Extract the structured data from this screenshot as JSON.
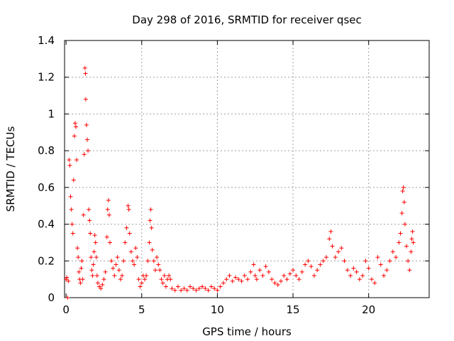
{
  "chart_data": {
    "type": "scatter",
    "title": "Day 298 of 2016, SRMTID for receiver qsec",
    "xlabel": "GPS time / hours",
    "ylabel": "SRMTID / TECUs",
    "xlim": [
      -0.1,
      24
    ],
    "ylim": [
      0,
      1.4
    ],
    "xticks": [
      0,
      5,
      10,
      15,
      20
    ],
    "xtick_labels": [
      "0",
      "5",
      "10",
      "15",
      "20"
    ],
    "yticks": [
      0,
      0.2,
      0.4,
      0.6,
      0.8,
      1.0,
      1.2,
      1.4
    ],
    "ytick_labels": [
      "0",
      "0.2",
      "0.4",
      "0.6",
      "0.8",
      "1",
      "1.2",
      "1.4"
    ],
    "grid": true,
    "marker": "plus",
    "marker_color": "#ff0000",
    "series": [
      {
        "name": "SRMTID",
        "points": [
          [
            0.0,
            0.1
          ],
          [
            0.05,
            0.11
          ],
          [
            0.1,
            0.0
          ],
          [
            0.15,
            0.09
          ],
          [
            0.2,
            0.75
          ],
          [
            0.25,
            0.72
          ],
          [
            0.3,
            0.55
          ],
          [
            0.35,
            0.48
          ],
          [
            0.4,
            0.4
          ],
          [
            0.45,
            0.35
          ],
          [
            0.5,
            0.64
          ],
          [
            0.55,
            0.88
          ],
          [
            0.6,
            0.95
          ],
          [
            0.65,
            0.93
          ],
          [
            0.7,
            0.75
          ],
          [
            0.75,
            0.27
          ],
          [
            0.8,
            0.22
          ],
          [
            0.85,
            0.14
          ],
          [
            0.9,
            0.1
          ],
          [
            0.95,
            0.08
          ],
          [
            1.0,
            0.16
          ],
          [
            1.05,
            0.2
          ],
          [
            1.1,
            0.1
          ],
          [
            1.15,
            0.45
          ],
          [
            1.2,
            0.78
          ],
          [
            1.25,
            1.25
          ],
          [
            1.28,
            1.22
          ],
          [
            1.3,
            1.08
          ],
          [
            1.35,
            0.94
          ],
          [
            1.4,
            0.86
          ],
          [
            1.45,
            0.8
          ],
          [
            1.5,
            0.48
          ],
          [
            1.55,
            0.42
          ],
          [
            1.6,
            0.35
          ],
          [
            1.65,
            0.22
          ],
          [
            1.7,
            0.15
          ],
          [
            1.75,
            0.12
          ],
          [
            1.8,
            0.18
          ],
          [
            1.85,
            0.25
          ],
          [
            1.9,
            0.34
          ],
          [
            1.95,
            0.3
          ],
          [
            2.0,
            0.22
          ],
          [
            2.05,
            0.12
          ],
          [
            2.1,
            0.08
          ],
          [
            2.2,
            0.06
          ],
          [
            2.3,
            0.05
          ],
          [
            2.4,
            0.07
          ],
          [
            2.5,
            0.1
          ],
          [
            2.6,
            0.14
          ],
          [
            2.7,
            0.33
          ],
          [
            2.75,
            0.48
          ],
          [
            2.8,
            0.53
          ],
          [
            2.85,
            0.45
          ],
          [
            2.9,
            0.3
          ],
          [
            3.0,
            0.2
          ],
          [
            3.1,
            0.16
          ],
          [
            3.2,
            0.12
          ],
          [
            3.3,
            0.18
          ],
          [
            3.4,
            0.22
          ],
          [
            3.5,
            0.15
          ],
          [
            3.6,
            0.1
          ],
          [
            3.7,
            0.12
          ],
          [
            3.8,
            0.2
          ],
          [
            3.9,
            0.3
          ],
          [
            4.0,
            0.38
          ],
          [
            4.1,
            0.5
          ],
          [
            4.15,
            0.48
          ],
          [
            4.2,
            0.35
          ],
          [
            4.3,
            0.25
          ],
          [
            4.4,
            0.2
          ],
          [
            4.5,
            0.18
          ],
          [
            4.6,
            0.27
          ],
          [
            4.7,
            0.22
          ],
          [
            4.8,
            0.1
          ],
          [
            4.9,
            0.06
          ],
          [
            5.0,
            0.08
          ],
          [
            5.1,
            0.12
          ],
          [
            5.2,
            0.1
          ],
          [
            5.3,
            0.12
          ],
          [
            5.4,
            0.2
          ],
          [
            5.5,
            0.3
          ],
          [
            5.55,
            0.42
          ],
          [
            5.6,
            0.48
          ],
          [
            5.65,
            0.38
          ],
          [
            5.7,
            0.26
          ],
          [
            5.8,
            0.2
          ],
          [
            5.9,
            0.15
          ],
          [
            6.0,
            0.22
          ],
          [
            6.1,
            0.18
          ],
          [
            6.2,
            0.15
          ],
          [
            6.3,
            0.1
          ],
          [
            6.4,
            0.08
          ],
          [
            6.5,
            0.12
          ],
          [
            6.6,
            0.06
          ],
          [
            6.7,
            0.1
          ],
          [
            6.8,
            0.12
          ],
          [
            6.9,
            0.1
          ],
          [
            7.0,
            0.05
          ],
          [
            7.2,
            0.04
          ],
          [
            7.4,
            0.06
          ],
          [
            7.6,
            0.04
          ],
          [
            7.8,
            0.05
          ],
          [
            8.0,
            0.04
          ],
          [
            8.2,
            0.06
          ],
          [
            8.4,
            0.05
          ],
          [
            8.6,
            0.04
          ],
          [
            8.8,
            0.05
          ],
          [
            9.0,
            0.06
          ],
          [
            9.2,
            0.05
          ],
          [
            9.4,
            0.04
          ],
          [
            9.6,
            0.06
          ],
          [
            9.8,
            0.05
          ],
          [
            10.0,
            0.04
          ],
          [
            10.2,
            0.06
          ],
          [
            10.4,
            0.08
          ],
          [
            10.6,
            0.1
          ],
          [
            10.8,
            0.12
          ],
          [
            11.0,
            0.09
          ],
          [
            11.2,
            0.11
          ],
          [
            11.4,
            0.1
          ],
          [
            11.6,
            0.09
          ],
          [
            11.8,
            0.12
          ],
          [
            12.0,
            0.1
          ],
          [
            12.2,
            0.14
          ],
          [
            12.4,
            0.18
          ],
          [
            12.5,
            0.12
          ],
          [
            12.6,
            0.1
          ],
          [
            12.8,
            0.15
          ],
          [
            13.0,
            0.12
          ],
          [
            13.2,
            0.17
          ],
          [
            13.4,
            0.14
          ],
          [
            13.6,
            0.1
          ],
          [
            13.8,
            0.08
          ],
          [
            14.0,
            0.07
          ],
          [
            14.2,
            0.09
          ],
          [
            14.4,
            0.12
          ],
          [
            14.6,
            0.1
          ],
          [
            14.8,
            0.13
          ],
          [
            15.0,
            0.15
          ],
          [
            15.2,
            0.12
          ],
          [
            15.4,
            0.1
          ],
          [
            15.6,
            0.14
          ],
          [
            15.8,
            0.18
          ],
          [
            16.0,
            0.2
          ],
          [
            16.2,
            0.17
          ],
          [
            16.4,
            0.12
          ],
          [
            16.6,
            0.15
          ],
          [
            16.8,
            0.18
          ],
          [
            17.0,
            0.2
          ],
          [
            17.2,
            0.22
          ],
          [
            17.4,
            0.32
          ],
          [
            17.5,
            0.36
          ],
          [
            17.6,
            0.28
          ],
          [
            17.8,
            0.22
          ],
          [
            18.0,
            0.25
          ],
          [
            18.2,
            0.27
          ],
          [
            18.4,
            0.2
          ],
          [
            18.6,
            0.15
          ],
          [
            18.8,
            0.12
          ],
          [
            19.0,
            0.16
          ],
          [
            19.2,
            0.14
          ],
          [
            19.4,
            0.1
          ],
          [
            19.6,
            0.12
          ],
          [
            19.8,
            0.2
          ],
          [
            20.0,
            0.16
          ],
          [
            20.2,
            0.1
          ],
          [
            20.4,
            0.08
          ],
          [
            20.6,
            0.22
          ],
          [
            20.8,
            0.18
          ],
          [
            21.0,
            0.12
          ],
          [
            21.2,
            0.15
          ],
          [
            21.4,
            0.2
          ],
          [
            21.6,
            0.25
          ],
          [
            21.8,
            0.22
          ],
          [
            22.0,
            0.3
          ],
          [
            22.1,
            0.35
          ],
          [
            22.2,
            0.46
          ],
          [
            22.25,
            0.58
          ],
          [
            22.3,
            0.6
          ],
          [
            22.35,
            0.52
          ],
          [
            22.4,
            0.4
          ],
          [
            22.5,
            0.28
          ],
          [
            22.6,
            0.2
          ],
          [
            22.7,
            0.15
          ],
          [
            22.8,
            0.25
          ],
          [
            22.85,
            0.32
          ],
          [
            22.9,
            0.36
          ],
          [
            22.95,
            0.3
          ]
        ]
      }
    ]
  }
}
